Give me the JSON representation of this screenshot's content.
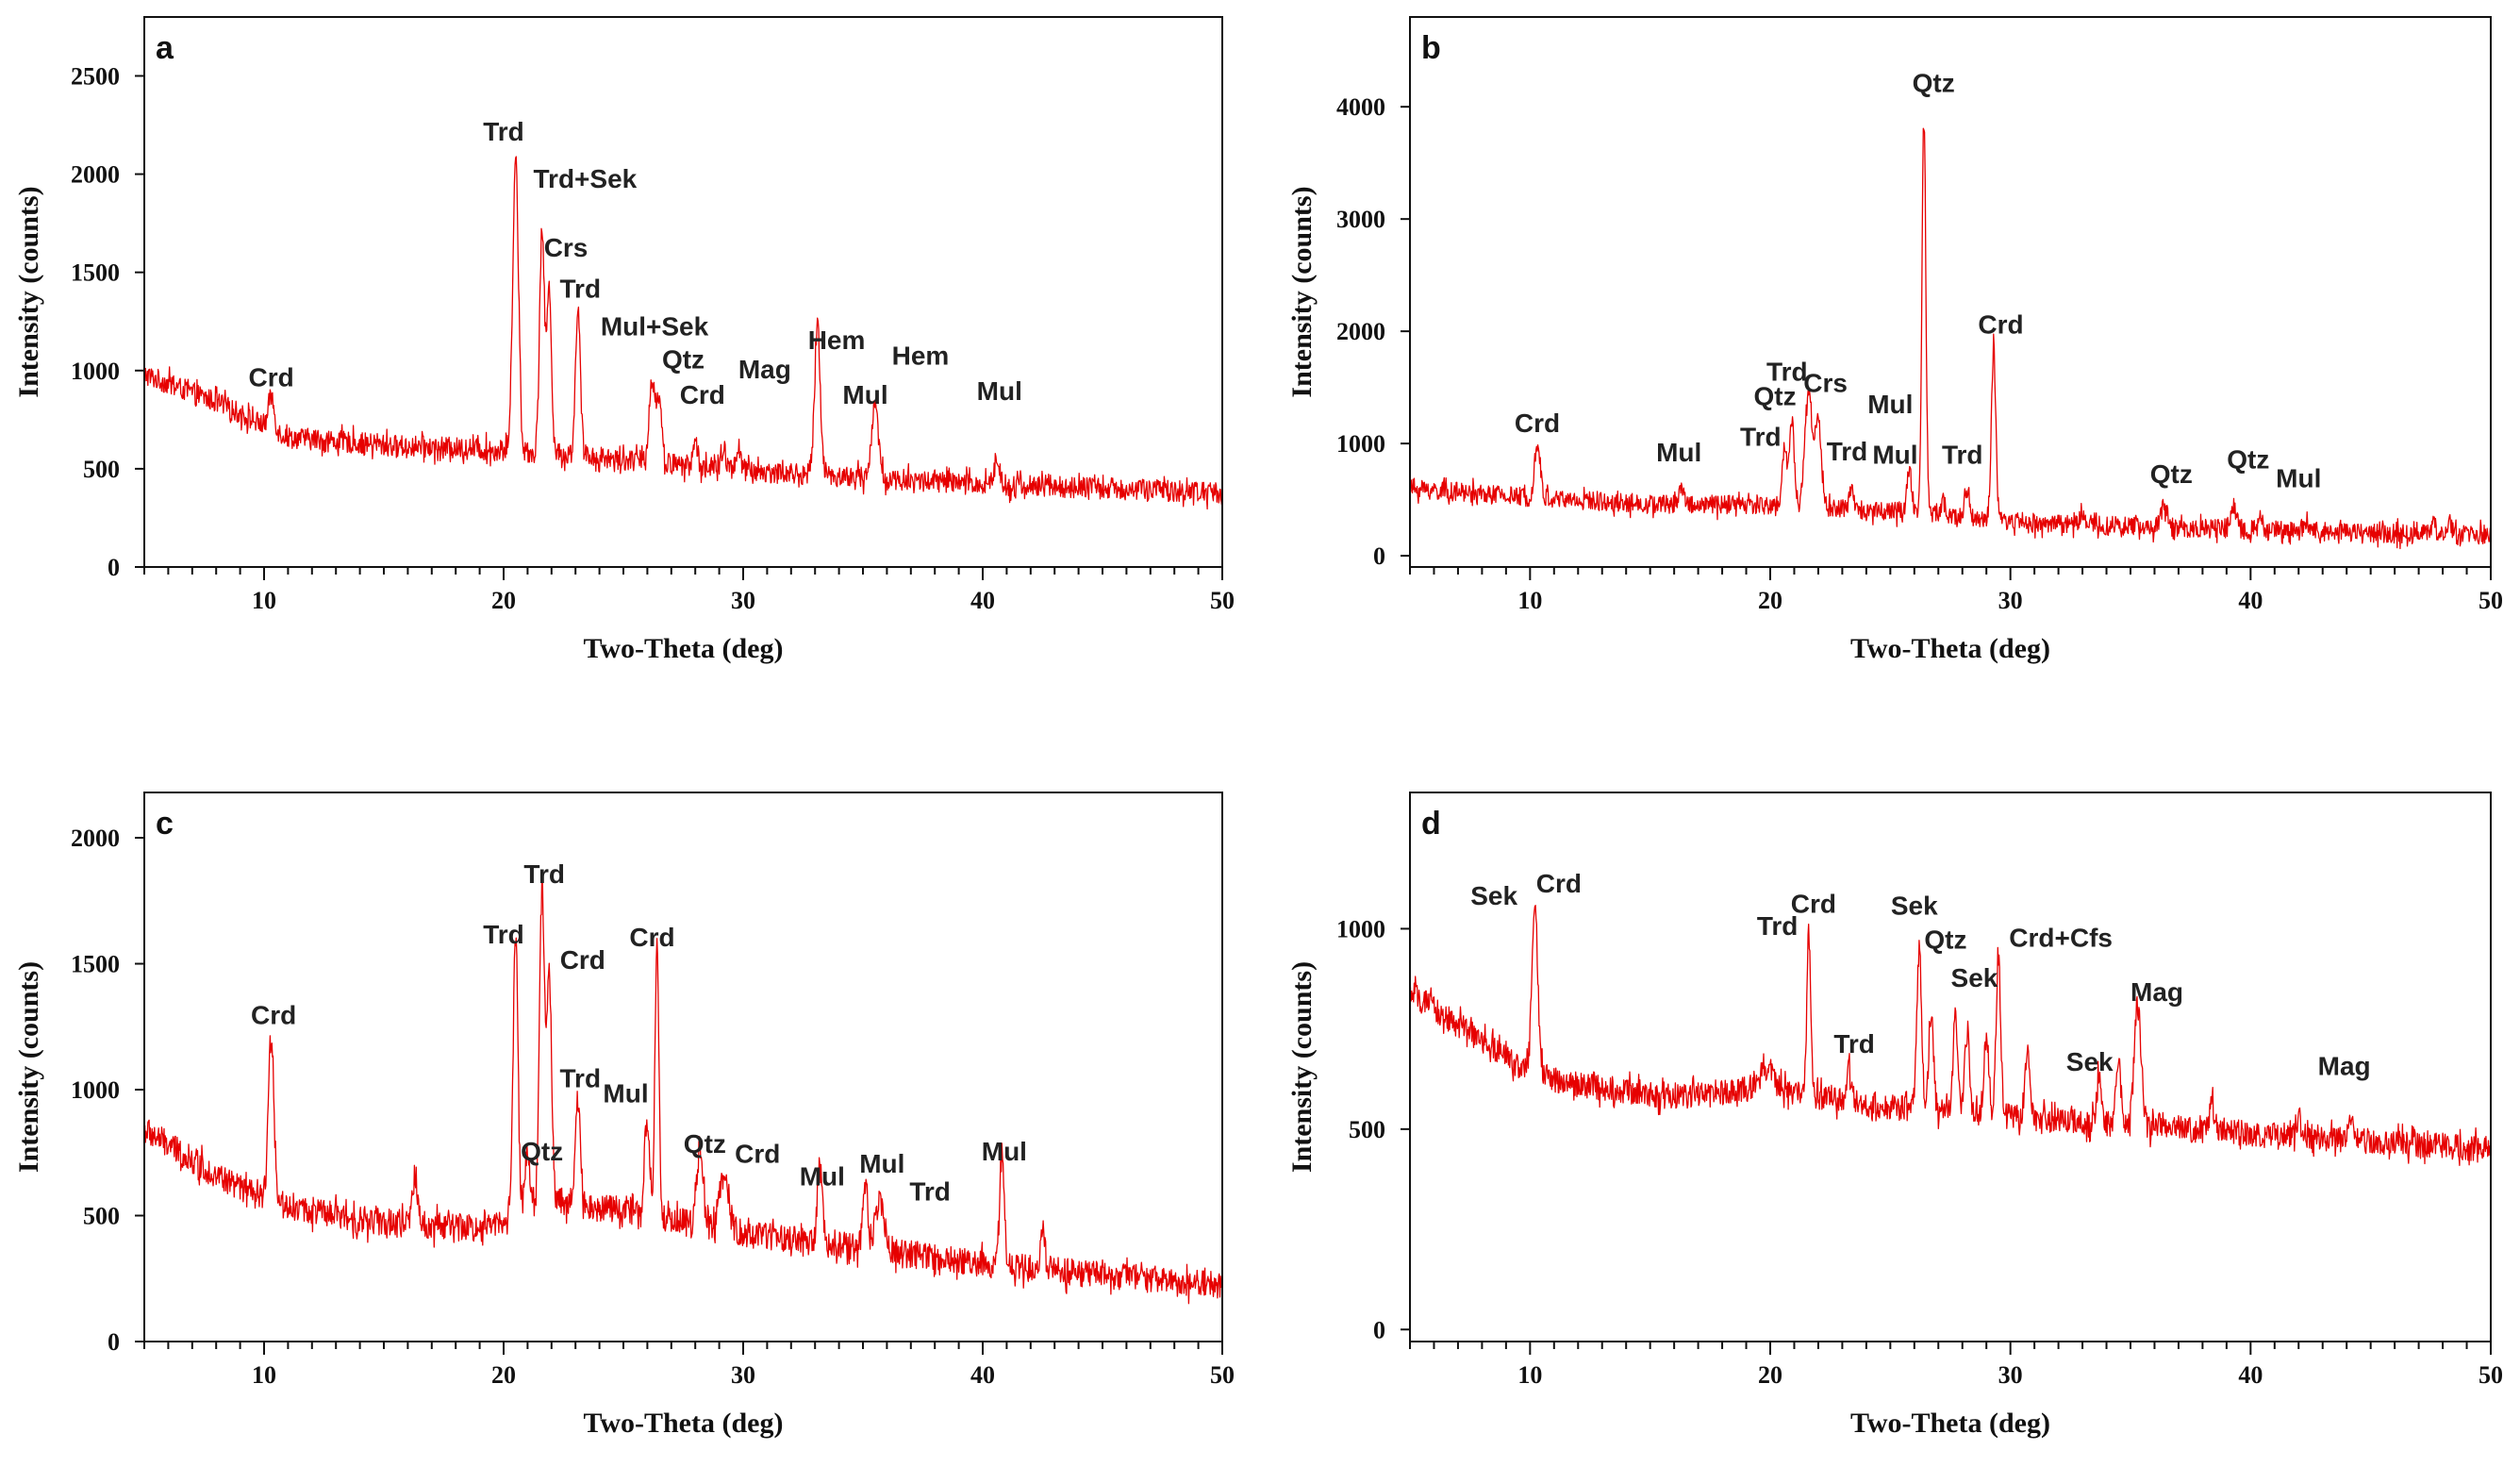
{
  "figure": "XRD patterns",
  "chart_data": [
    {
      "panel": "a",
      "type": "line",
      "xlabel": "Two-Theta (deg)",
      "ylabel": "Intensity (counts)",
      "xlim": [
        5,
        50
      ],
      "ylim": [
        0,
        2800
      ],
      "xticks": [
        10,
        20,
        30,
        40,
        50
      ],
      "yticks": [
        0,
        500,
        1000,
        1500,
        2000,
        2500
      ],
      "baseline": [
        [
          5,
          980
        ],
        [
          8,
          840
        ],
        [
          11,
          660
        ],
        [
          15,
          620
        ],
        [
          19,
          600
        ],
        [
          24,
          560
        ],
        [
          30,
          490
        ],
        [
          40,
          420
        ],
        [
          50,
          380
        ]
      ],
      "noise": 55,
      "peaks": [
        [
          10.3,
          170,
          0.12
        ],
        [
          20.5,
          1500,
          0.12
        ],
        [
          21.6,
          1130,
          0.1
        ],
        [
          21.9,
          830,
          0.1
        ],
        [
          23.1,
          760,
          0.1
        ],
        [
          26.2,
          430,
          0.12
        ],
        [
          26.5,
          330,
          0.1
        ],
        [
          28.0,
          120,
          0.1
        ],
        [
          29.2,
          90,
          0.1
        ],
        [
          29.8,
          120,
          0.1
        ],
        [
          33.1,
          760,
          0.12
        ],
        [
          35.5,
          380,
          0.14
        ],
        [
          40.6,
          120,
          0.12
        ]
      ],
      "annotations": [
        {
          "text": "Crd",
          "x": 10.3,
          "y": 920
        },
        {
          "text": "Trd",
          "x": 20.0,
          "y": 2170
        },
        {
          "text": "Trd+Sek",
          "x": 23.4,
          "y": 1930
        },
        {
          "text": "Crs",
          "x": 22.6,
          "y": 1580
        },
        {
          "text": "Trd",
          "x": 23.2,
          "y": 1370
        },
        {
          "text": "Mul+Sek",
          "x": 26.3,
          "y": 1180
        },
        {
          "text": "Qtz",
          "x": 27.5,
          "y": 1010
        },
        {
          "text": "Crd",
          "x": 28.3,
          "y": 830
        },
        {
          "text": "Mag",
          "x": 30.9,
          "y": 960
        },
        {
          "text": "Hem",
          "x": 33.9,
          "y": 1110
        },
        {
          "text": "Mul",
          "x": 35.1,
          "y": 830
        },
        {
          "text": "Hem",
          "x": 37.4,
          "y": 1030
        },
        {
          "text": "Mul",
          "x": 40.7,
          "y": 850
        }
      ]
    },
    {
      "panel": "b",
      "type": "line",
      "xlabel": "Two-Theta (deg)",
      "ylabel": "Intensity (counts)",
      "xlim": [
        5,
        50
      ],
      "ylim": [
        -100,
        4800
      ],
      "xticks": [
        10,
        20,
        30,
        40,
        50
      ],
      "yticks": [
        0,
        1000,
        2000,
        3000,
        4000
      ],
      "baseline": [
        [
          5,
          600
        ],
        [
          10,
          520
        ],
        [
          15,
          460
        ],
        [
          20,
          450
        ],
        [
          25,
          400
        ],
        [
          30,
          300
        ],
        [
          40,
          230
        ],
        [
          50,
          180
        ]
      ],
      "noise": 85,
      "peaks": [
        [
          10.3,
          480,
          0.12
        ],
        [
          16.3,
          150,
          0.12
        ],
        [
          20.6,
          500,
          0.1
        ],
        [
          20.9,
          780,
          0.1
        ],
        [
          21.6,
          1050,
          0.15
        ],
        [
          22.0,
          800,
          0.12
        ],
        [
          23.4,
          160,
          0.1
        ],
        [
          25.8,
          400,
          0.1
        ],
        [
          26.4,
          3550,
          0.08
        ],
        [
          27.2,
          120,
          0.1
        ],
        [
          28.2,
          260,
          0.1
        ],
        [
          29.3,
          1550,
          0.09
        ],
        [
          33.0,
          110,
          0.1
        ],
        [
          36.4,
          200,
          0.12
        ],
        [
          39.3,
          180,
          0.12
        ],
        [
          40.4,
          120,
          0.1
        ],
        [
          42.3,
          100,
          0.1
        ],
        [
          47.6,
          120,
          0.1
        ],
        [
          48.3,
          90,
          0.1
        ]
      ],
      "annotations": [
        {
          "text": "Qtz",
          "x": 26.8,
          "y": 4130
        },
        {
          "text": "Crd",
          "x": 10.3,
          "y": 1100
        },
        {
          "text": "Mul",
          "x": 16.2,
          "y": 840
        },
        {
          "text": "Trd",
          "x": 20.7,
          "y": 1560
        },
        {
          "text": "Crs",
          "x": 22.3,
          "y": 1460
        },
        {
          "text": "Qtz",
          "x": 20.2,
          "y": 1340
        },
        {
          "text": "Trd",
          "x": 19.6,
          "y": 980
        },
        {
          "text": "Trd",
          "x": 23.2,
          "y": 850
        },
        {
          "text": "Mul",
          "x": 25.0,
          "y": 1270
        },
        {
          "text": "Mul",
          "x": 25.2,
          "y": 820
        },
        {
          "text": "Trd",
          "x": 28.0,
          "y": 820
        },
        {
          "text": "Crd",
          "x": 29.6,
          "y": 1980
        },
        {
          "text": "Qtz",
          "x": 36.7,
          "y": 650
        },
        {
          "text": "Qtz",
          "x": 39.9,
          "y": 780
        },
        {
          "text": "Mul",
          "x": 42.0,
          "y": 610
        }
      ]
    },
    {
      "panel": "c",
      "type": "line",
      "xlabel": "Two-Theta (deg)",
      "ylabel": "Intensity (counts)",
      "xlim": [
        5,
        50
      ],
      "ylim": [
        0,
        2180
      ],
      "xticks": [
        10,
        20,
        30,
        40,
        50
      ],
      "yticks": [
        0,
        500,
        1000,
        1500,
        2000
      ],
      "baseline": [
        [
          5,
          840
        ],
        [
          8,
          660
        ],
        [
          10,
          560
        ],
        [
          14,
          480
        ],
        [
          19,
          450
        ],
        [
          22,
          560
        ],
        [
          25,
          520
        ],
        [
          30,
          430
        ],
        [
          40,
          310
        ],
        [
          50,
          220
        ]
      ],
      "noise": 55,
      "peaks": [
        [
          10.3,
          660,
          0.12
        ],
        [
          16.3,
          200,
          0.1
        ],
        [
          20.5,
          1120,
          0.1
        ],
        [
          21.0,
          250,
          0.1
        ],
        [
          21.6,
          1260,
          0.1
        ],
        [
          21.9,
          940,
          0.1
        ],
        [
          23.1,
          420,
          0.1
        ],
        [
          26.0,
          400,
          0.1
        ],
        [
          26.4,
          1100,
          0.08
        ],
        [
          28.2,
          320,
          0.12
        ],
        [
          29.2,
          240,
          0.18
        ],
        [
          33.2,
          300,
          0.1
        ],
        [
          35.1,
          270,
          0.1
        ],
        [
          35.7,
          200,
          0.18
        ],
        [
          40.8,
          430,
          0.1
        ],
        [
          42.5,
          130,
          0.1
        ]
      ],
      "annotations": [
        {
          "text": "Crd",
          "x": 10.4,
          "y": 1260
        },
        {
          "text": "Trd",
          "x": 21.7,
          "y": 1820
        },
        {
          "text": "Trd",
          "x": 20.0,
          "y": 1580
        },
        {
          "text": "Crd",
          "x": 23.3,
          "y": 1480
        },
        {
          "text": "Crd",
          "x": 26.2,
          "y": 1570
        },
        {
          "text": "Trd",
          "x": 23.2,
          "y": 1010
        },
        {
          "text": "Mul",
          "x": 25.1,
          "y": 950
        },
        {
          "text": "Qtz",
          "x": 21.6,
          "y": 720
        },
        {
          "text": "Qtz",
          "x": 28.4,
          "y": 750
        },
        {
          "text": "Crd",
          "x": 30.6,
          "y": 710
        },
        {
          "text": "Mul",
          "x": 33.3,
          "y": 620
        },
        {
          "text": "Mul",
          "x": 35.8,
          "y": 670
        },
        {
          "text": "Trd",
          "x": 37.8,
          "y": 560
        },
        {
          "text": "Mul",
          "x": 40.9,
          "y": 720
        }
      ]
    },
    {
      "panel": "d",
      "type": "line",
      "xlabel": "Two-Theta (deg)",
      "ylabel": "Intensity (counts)",
      "xlim": [
        5,
        50
      ],
      "ylim": [
        -30,
        1340
      ],
      "xticks": [
        10,
        20,
        30,
        40,
        50
      ],
      "yticks": [
        0,
        500,
        1000
      ],
      "baseline": [
        [
          5,
          840
        ],
        [
          8,
          720
        ],
        [
          10,
          640
        ],
        [
          12,
          610
        ],
        [
          16,
          580
        ],
        [
          20,
          600
        ],
        [
          24,
          560
        ],
        [
          30,
          530
        ],
        [
          40,
          490
        ],
        [
          50,
          450
        ]
      ],
      "noise": 32,
      "peaks": [
        [
          10.2,
          420,
          0.12
        ],
        [
          19.8,
          60,
          0.3
        ],
        [
          21.6,
          410,
          0.08
        ],
        [
          23.3,
          80,
          0.1
        ],
        [
          26.2,
          400,
          0.1
        ],
        [
          26.7,
          230,
          0.1
        ],
        [
          27.7,
          230,
          0.1
        ],
        [
          28.2,
          200,
          0.1
        ],
        [
          29.0,
          200,
          0.1
        ],
        [
          29.5,
          420,
          0.09
        ],
        [
          30.7,
          160,
          0.1
        ],
        [
          33.7,
          120,
          0.1
        ],
        [
          34.5,
          160,
          0.1
        ],
        [
          35.3,
          300,
          0.14
        ],
        [
          38.4,
          60,
          0.1
        ],
        [
          42.0,
          50,
          0.1
        ],
        [
          44.2,
          60,
          0.1
        ]
      ],
      "annotations": [
        {
          "text": "Sek",
          "x": 8.5,
          "y": 1060
        },
        {
          "text": "Crd",
          "x": 11.2,
          "y": 1090
        },
        {
          "text": "Trd",
          "x": 20.3,
          "y": 985
        },
        {
          "text": "Crd",
          "x": 21.8,
          "y": 1040
        },
        {
          "text": "Sek",
          "x": 26.0,
          "y": 1035
        },
        {
          "text": "Qtz",
          "x": 27.3,
          "y": 950
        },
        {
          "text": "Crd+Cfs",
          "x": 32.1,
          "y": 955
        },
        {
          "text": "Sek",
          "x": 28.5,
          "y": 855
        },
        {
          "text": "Trd",
          "x": 23.5,
          "y": 690
        },
        {
          "text": "Sek",
          "x": 33.3,
          "y": 645
        },
        {
          "text": "Mag",
          "x": 36.1,
          "y": 820
        },
        {
          "text": "Mag",
          "x": 43.9,
          "y": 635
        }
      ]
    }
  ]
}
